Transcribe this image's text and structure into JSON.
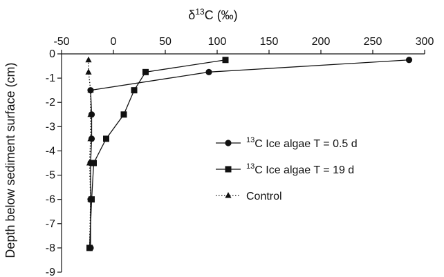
{
  "chart_data": {
    "type": "line",
    "x_axis": {
      "label_prefix": "δ",
      "label_sup": "13",
      "label_suffix": "C (‰)",
      "range": [
        -50,
        300
      ],
      "ticks": [
        -50,
        0,
        50,
        100,
        150,
        200,
        250,
        300
      ],
      "position": "top"
    },
    "y_axis": {
      "label": "Depth below sediment surface (cm)",
      "range": [
        -9,
        0
      ],
      "ticks": [
        0,
        -1,
        -2,
        -3,
        -4,
        -5,
        -6,
        -7,
        -8,
        -9
      ]
    },
    "grid": false,
    "legend_position": "right",
    "series": [
      {
        "name_sup": "13",
        "name": "C Ice algae T = 0.5 d",
        "marker": "circle",
        "line_style": "solid",
        "color": "#111111",
        "points": [
          [
            285,
            -0.25
          ],
          [
            92,
            -0.75
          ],
          [
            -22,
            -1.5
          ],
          [
            -21,
            -2.5
          ],
          [
            -21,
            -3.5
          ],
          [
            -22,
            -4.5
          ],
          [
            -22,
            -6.0
          ],
          [
            -22,
            -8.0
          ]
        ]
      },
      {
        "name_sup": "13",
        "name": "C Ice algae T = 19 d",
        "marker": "square",
        "line_style": "solid",
        "color": "#111111",
        "points": [
          [
            108,
            -0.25
          ],
          [
            31,
            -0.75
          ],
          [
            20,
            -1.5
          ],
          [
            10,
            -2.5
          ],
          [
            -7,
            -3.5
          ],
          [
            -19,
            -4.5
          ],
          [
            -21,
            -6.0
          ],
          [
            -23,
            -8.0
          ]
        ]
      },
      {
        "name_sup": "",
        "name": "Control",
        "marker": "triangle",
        "line_style": "dotted",
        "color": "#111111",
        "points": [
          [
            -24,
            -0.25
          ],
          [
            -24,
            -0.75
          ],
          [
            -22,
            -1.5
          ],
          [
            -22,
            -2.5
          ],
          [
            -22,
            -3.5
          ],
          [
            -23,
            -4.5
          ],
          [
            -22,
            -6.0
          ],
          [
            -23,
            -8.0
          ]
        ]
      }
    ]
  }
}
